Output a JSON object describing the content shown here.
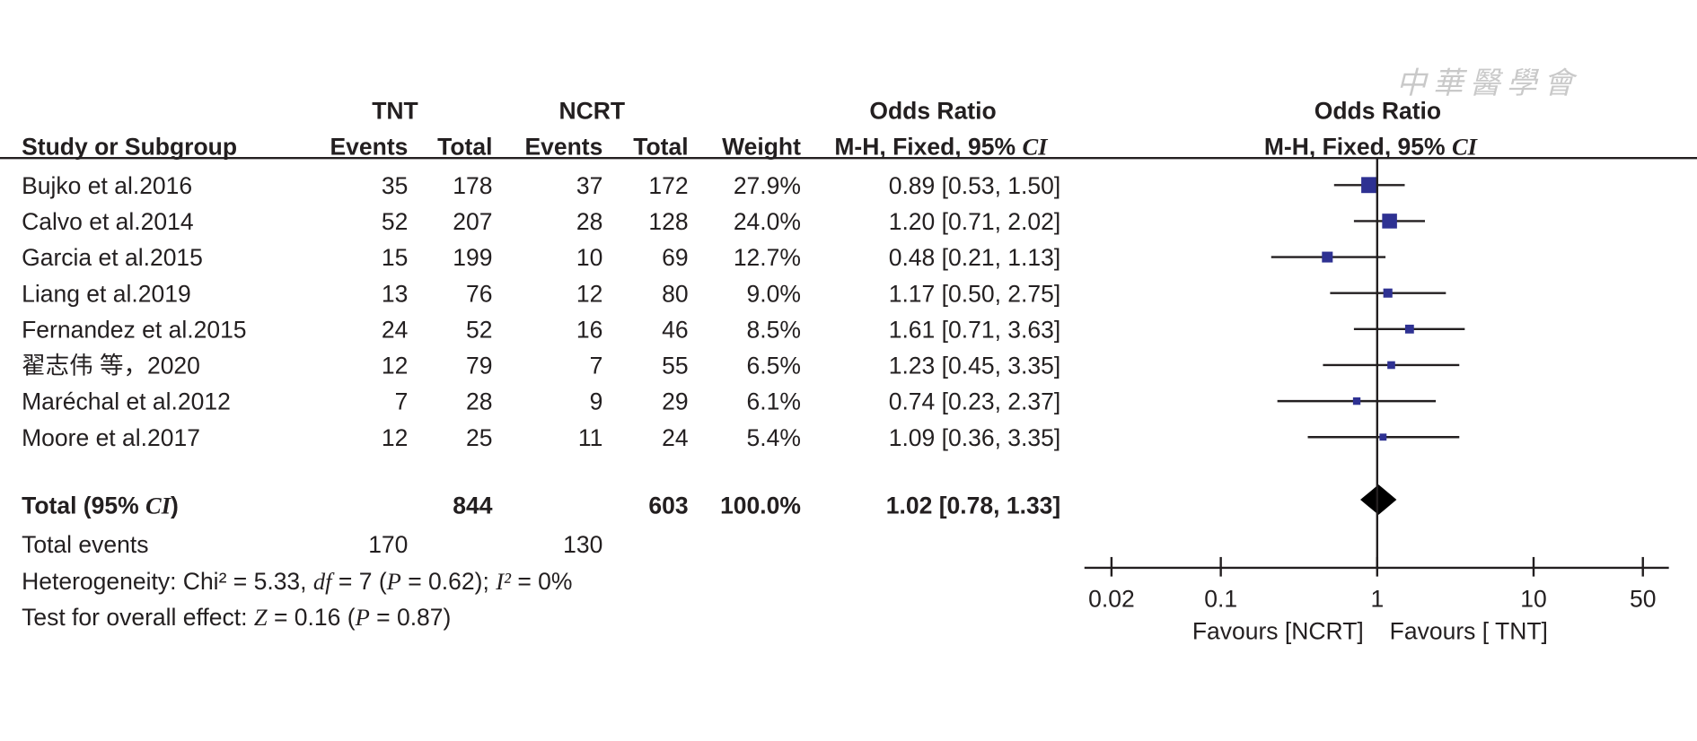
{
  "chart_data": {
    "type": "forest",
    "watermark": "中華醫學會",
    "headers": {
      "group1": "TNT",
      "group2": "NCRT",
      "effect": "Odds Ratio",
      "study": "Study or Subgroup",
      "events1": "Events",
      "total1": "Total",
      "events2": "Events",
      "total2": "Total",
      "weight": "Weight",
      "method": "M-H, Fixed, 95% ",
      "ci": "CI",
      "plot_effect": "Odds Ratio",
      "plot_method": "M-H, Fixed, 95% ",
      "plot_ci": "CI"
    },
    "studies": [
      {
        "name": "Bujko et al.2016",
        "events1": 35,
        "total1": 178,
        "events2": 37,
        "total2": 172,
        "weight": 27.9,
        "weight_label": "27.9%",
        "or": 0.89,
        "lower": 0.53,
        "upper": 1.5,
        "or_label": "0.89 [0.53, 1.50]"
      },
      {
        "name": "Calvo et al.2014",
        "events1": 52,
        "total1": 207,
        "events2": 28,
        "total2": 128,
        "weight": 24.0,
        "weight_label": "24.0%",
        "or": 1.2,
        "lower": 0.71,
        "upper": 2.02,
        "or_label": "1.20 [0.71, 2.02]"
      },
      {
        "name": "Garcia et al.2015",
        "events1": 15,
        "total1": 199,
        "events2": 10,
        "total2": 69,
        "weight": 12.7,
        "weight_label": "12.7%",
        "or": 0.48,
        "lower": 0.21,
        "upper": 1.13,
        "or_label": "0.48 [0.21, 1.13]"
      },
      {
        "name": "Liang et al.2019",
        "events1": 13,
        "total1": 76,
        "events2": 12,
        "total2": 80,
        "weight": 9.0,
        "weight_label": "9.0%",
        "or": 1.17,
        "lower": 0.5,
        "upper": 2.75,
        "or_label": "1.17 [0.50, 2.75]"
      },
      {
        "name": "Fernandez et al.2015",
        "events1": 24,
        "total1": 52,
        "events2": 16,
        "total2": 46,
        "weight": 8.5,
        "weight_label": "8.5%",
        "or": 1.61,
        "lower": 0.71,
        "upper": 3.63,
        "or_label": "1.61 [0.71, 3.63]"
      },
      {
        "name": "翟志伟 等，2020",
        "events1": 12,
        "total1": 79,
        "events2": 7,
        "total2": 55,
        "weight": 6.5,
        "weight_label": "6.5%",
        "or": 1.23,
        "lower": 0.45,
        "upper": 3.35,
        "or_label": "1.23 [0.45, 3.35]"
      },
      {
        "name": "Maréchal et al.2012",
        "events1": 7,
        "total1": 28,
        "events2": 9,
        "total2": 29,
        "weight": 6.1,
        "weight_label": "6.1%",
        "or": 0.74,
        "lower": 0.23,
        "upper": 2.37,
        "or_label": "0.74 [0.23, 2.37]"
      },
      {
        "name": "Moore et al.2017",
        "events1": 12,
        "total1": 25,
        "events2": 11,
        "total2": 24,
        "weight": 5.4,
        "weight_label": "5.4%",
        "or": 1.09,
        "lower": 0.36,
        "upper": 3.35,
        "or_label": "1.09 [0.36, 3.35]"
      }
    ],
    "total": {
      "label": [
        "Total (95% ",
        "CI",
        ")"
      ],
      "total1": 844,
      "total2": 603,
      "weight": 100.0,
      "weight_label": "100.0%",
      "or": 1.02,
      "lower": 0.78,
      "upper": 1.33,
      "or_label": "1.02 [0.78, 1.33]"
    },
    "events": {
      "label": "Total events",
      "events1": 170,
      "events2": 130
    },
    "heterogeneity": [
      "Heterogeneity: Chi² = 5.33, ",
      "df",
      " = 7 (",
      "P",
      " = 0.62); ",
      "I²",
      " = 0%"
    ],
    "overall_effect": [
      "Test for overall effect: ",
      "Z",
      " = 0.16 (",
      "P",
      " = 0.87)"
    ],
    "xlim": [
      0.02,
      50
    ],
    "xticks": [
      0.02,
      0.1,
      1,
      10,
      50
    ],
    "log_x": true,
    "xlabel_left": "Favours [NCRT]",
    "xlabel_right": "Favours [ TNT]",
    "color": "#2e3192",
    "total_color": "#000000"
  }
}
